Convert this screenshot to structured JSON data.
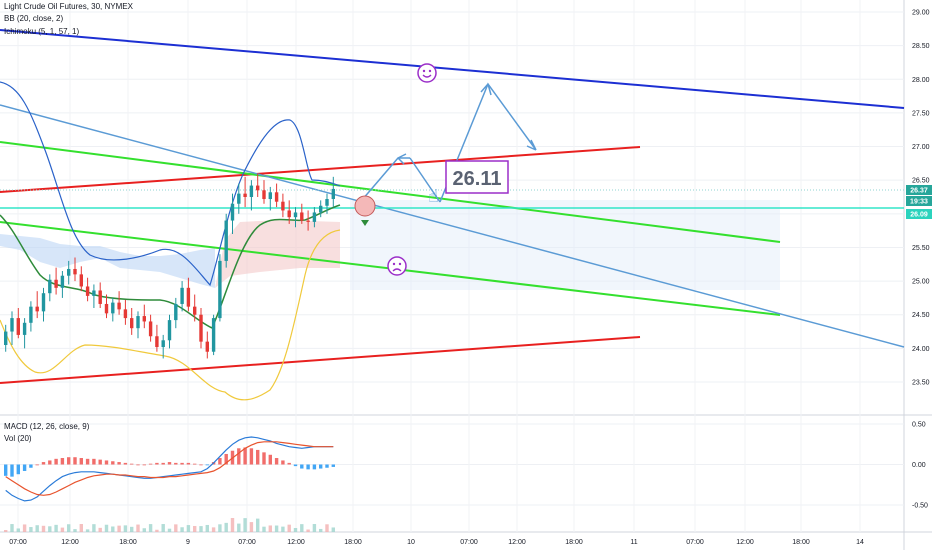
{
  "header": {
    "symbol_line": "Light Crude Oil Futures, 30, NYMEX",
    "bb_line": "BB (20, close, 2)",
    "ichimoku_line": "Ichimoku (5, 1, 57, 1)",
    "macd_line": "MACD (12, 26, close, 9)",
    "vol_line": "Vol (20)"
  },
  "price_labels": {
    "last": "26.37",
    "countdown": "19:33",
    "line": "26.09"
  },
  "annotation": {
    "callout": "26.11"
  },
  "colors": {
    "blue_trend": "#1c2fd3",
    "red_channel": "#e8201f",
    "green_channel": "#34e02e",
    "light_blue_trend": "#5b9bd5",
    "cyan_line": "#33e6c8",
    "bb_band": "#2a62c9",
    "bb_basis": "#2e8b3a",
    "bb_lower": "#f0c93c",
    "candle_up": "#2196a0",
    "candle_down": "#e53935",
    "macd_line": "#2a7bd8",
    "signal_line": "#e8542e",
    "emoji": "#9b2fc9"
  },
  "chart_data": [
    {
      "type": "line",
      "name": "price",
      "y_ticks": [
        "29.00",
        "28.50",
        "28.00",
        "27.50",
        "27.00",
        "26.50",
        "26.00",
        "25.50",
        "25.00",
        "24.50",
        "24.00",
        "23.50"
      ],
      "x_ticks": [
        "07:00",
        "12:00",
        "18:00",
        "9",
        "07:00",
        "12:00",
        "18:00",
        "10",
        "07:00",
        "12:00",
        "18:00",
        "11",
        "07:00",
        "12:00",
        "18:00",
        "14"
      ],
      "ylim": [
        23.1,
        29.1
      ],
      "candles_ohlc": [
        [
          24.05,
          24.35,
          23.95,
          24.25
        ],
        [
          24.25,
          24.55,
          24.05,
          24.45
        ],
        [
          24.45,
          24.6,
          24.15,
          24.2
        ],
        [
          24.2,
          24.45,
          24.0,
          24.38
        ],
        [
          24.38,
          24.7,
          24.25,
          24.62
        ],
        [
          24.62,
          24.85,
          24.45,
          24.55
        ],
        [
          24.55,
          24.9,
          24.4,
          24.82
        ],
        [
          24.82,
          25.1,
          24.7,
          25.02
        ],
        [
          25.02,
          25.2,
          24.8,
          24.9
        ],
        [
          24.9,
          25.15,
          24.75,
          25.08
        ],
        [
          25.08,
          25.3,
          24.95,
          25.18
        ],
        [
          25.18,
          25.35,
          25.0,
          25.1
        ],
        [
          25.1,
          25.22,
          24.85,
          24.92
        ],
        [
          24.92,
          25.05,
          24.7,
          24.78
        ],
        [
          24.78,
          24.95,
          24.6,
          24.86
        ],
        [
          24.86,
          24.98,
          24.6,
          24.66
        ],
        [
          24.66,
          24.8,
          24.45,
          24.52
        ],
        [
          24.52,
          24.75,
          24.4,
          24.68
        ],
        [
          24.68,
          24.85,
          24.5,
          24.58
        ],
        [
          24.58,
          24.72,
          24.35,
          24.45
        ],
        [
          24.45,
          24.6,
          24.2,
          24.3
        ],
        [
          24.3,
          24.55,
          24.15,
          24.48
        ],
        [
          24.48,
          24.65,
          24.3,
          24.4
        ],
        [
          24.4,
          24.5,
          24.1,
          24.18
        ],
        [
          24.18,
          24.35,
          23.95,
          24.02
        ],
        [
          24.02,
          24.2,
          23.85,
          24.12
        ],
        [
          24.12,
          24.5,
          24.0,
          24.42
        ],
        [
          24.42,
          24.75,
          24.3,
          24.66
        ],
        [
          24.66,
          25.0,
          24.55,
          24.9
        ],
        [
          24.9,
          25.05,
          24.55,
          24.62
        ],
        [
          24.62,
          24.8,
          24.4,
          24.5
        ],
        [
          24.5,
          24.6,
          24.0,
          24.1
        ],
        [
          24.1,
          24.25,
          23.85,
          23.95
        ],
        [
          23.95,
          24.5,
          23.9,
          24.45
        ],
        [
          24.45,
          25.4,
          24.4,
          25.3
        ],
        [
          25.3,
          26.0,
          25.2,
          25.9
        ],
        [
          25.9,
          26.3,
          25.7,
          26.15
        ],
        [
          26.15,
          26.45,
          26.0,
          26.3
        ],
        [
          26.3,
          26.55,
          26.1,
          26.25
        ],
        [
          26.25,
          26.5,
          26.05,
          26.42
        ],
        [
          26.42,
          26.6,
          26.25,
          26.35
        ],
        [
          26.35,
          26.5,
          26.15,
          26.22
        ],
        [
          26.22,
          26.4,
          26.05,
          26.32
        ],
        [
          26.32,
          26.45,
          26.1,
          26.18
        ],
        [
          26.18,
          26.3,
          25.95,
          26.05
        ],
        [
          26.05,
          26.2,
          25.85,
          25.95
        ],
        [
          25.95,
          26.1,
          25.8,
          26.02
        ],
        [
          26.02,
          26.15,
          25.85,
          25.9
        ],
        [
          25.9,
          26.05,
          25.75,
          25.88
        ],
        [
          25.88,
          26.1,
          25.8,
          26.02
        ],
        [
          26.02,
          26.2,
          25.95,
          26.12
        ],
        [
          26.12,
          26.3,
          26.0,
          26.22
        ],
        [
          26.22,
          26.55,
          26.1,
          26.37
        ]
      ],
      "target_price": 26.11
    },
    {
      "type": "bar",
      "name": "MACD (12, 26, close, 9)",
      "y_ticks": [
        "0.50",
        "0.00",
        "-0.50"
      ],
      "ylim": [
        -0.72,
        0.6
      ],
      "histogram": [
        -0.14,
        -0.15,
        -0.12,
        -0.08,
        -0.04,
        0.0,
        0.03,
        0.05,
        0.07,
        0.08,
        0.09,
        0.09,
        0.08,
        0.07,
        0.07,
        0.06,
        0.05,
        0.04,
        0.03,
        0.02,
        0.01,
        0.0,
        0.0,
        0.01,
        0.02,
        0.02,
        0.03,
        0.02,
        0.02,
        0.02,
        0.01,
        0.0,
        -0.01,
        0.03,
        0.08,
        0.13,
        0.17,
        0.2,
        0.21,
        0.2,
        0.18,
        0.15,
        0.12,
        0.08,
        0.05,
        0.02,
        -0.02,
        -0.05,
        -0.06,
        -0.06,
        -0.05,
        -0.04,
        -0.03
      ],
      "macd": [
        -0.32,
        -0.38,
        -0.42,
        -0.45,
        -0.44,
        -0.4,
        -0.33,
        -0.26,
        -0.2,
        -0.15,
        -0.12,
        -0.1,
        -0.09,
        -0.09,
        -0.09,
        -0.1,
        -0.11,
        -0.12,
        -0.13,
        -0.14,
        -0.15,
        -0.16,
        -0.17,
        -0.17,
        -0.16,
        -0.15,
        -0.14,
        -0.13,
        -0.12,
        -0.11,
        -0.1,
        -0.09,
        -0.05,
        0.02,
        0.1,
        0.18,
        0.25,
        0.3,
        0.33,
        0.34,
        0.33,
        0.31,
        0.29,
        0.26,
        0.24,
        0.22,
        0.21,
        0.2,
        0.21,
        0.22,
        0.22,
        0.22,
        0.22
      ],
      "signal": [
        -0.15,
        -0.2,
        -0.25,
        -0.3,
        -0.34,
        -0.37,
        -0.38,
        -0.37,
        -0.34,
        -0.3,
        -0.26,
        -0.22,
        -0.19,
        -0.16,
        -0.14,
        -0.13,
        -0.12,
        -0.12,
        -0.13,
        -0.13,
        -0.14,
        -0.15,
        -0.15,
        -0.16,
        -0.16,
        -0.16,
        -0.15,
        -0.15,
        -0.14,
        -0.13,
        -0.12,
        -0.11,
        -0.1,
        -0.08,
        -0.04,
        0.02,
        0.08,
        0.14,
        0.2,
        0.24,
        0.27,
        0.28,
        0.28,
        0.28,
        0.27,
        0.26,
        0.25,
        0.24,
        0.23,
        0.22,
        0.22,
        0.22,
        0.22
      ]
    }
  ]
}
